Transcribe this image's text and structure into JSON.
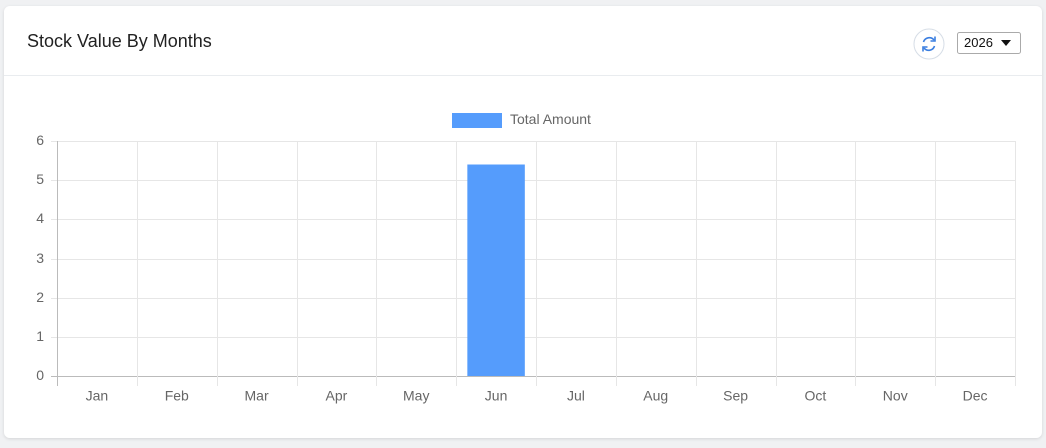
{
  "header": {
    "year": "2026"
  },
  "chart_data": {
    "type": "bar",
    "title": "Stock Value By Months",
    "categories": [
      "Jan",
      "Feb",
      "Mar",
      "Apr",
      "May",
      "Jun",
      "Jul",
      "Aug",
      "Sep",
      "Oct",
      "Nov",
      "Dec"
    ],
    "series": [
      {
        "name": "Total Amount",
        "color": "#559cfc",
        "values": [
          0,
          0,
          0,
          0,
          0,
          5.4,
          0,
          0,
          0,
          0,
          0,
          0
        ]
      }
    ],
    "ylim": [
      0,
      6
    ],
    "yticks": [
      0,
      1,
      2,
      3,
      4,
      5,
      6
    ],
    "grid": true,
    "legend": "top"
  }
}
